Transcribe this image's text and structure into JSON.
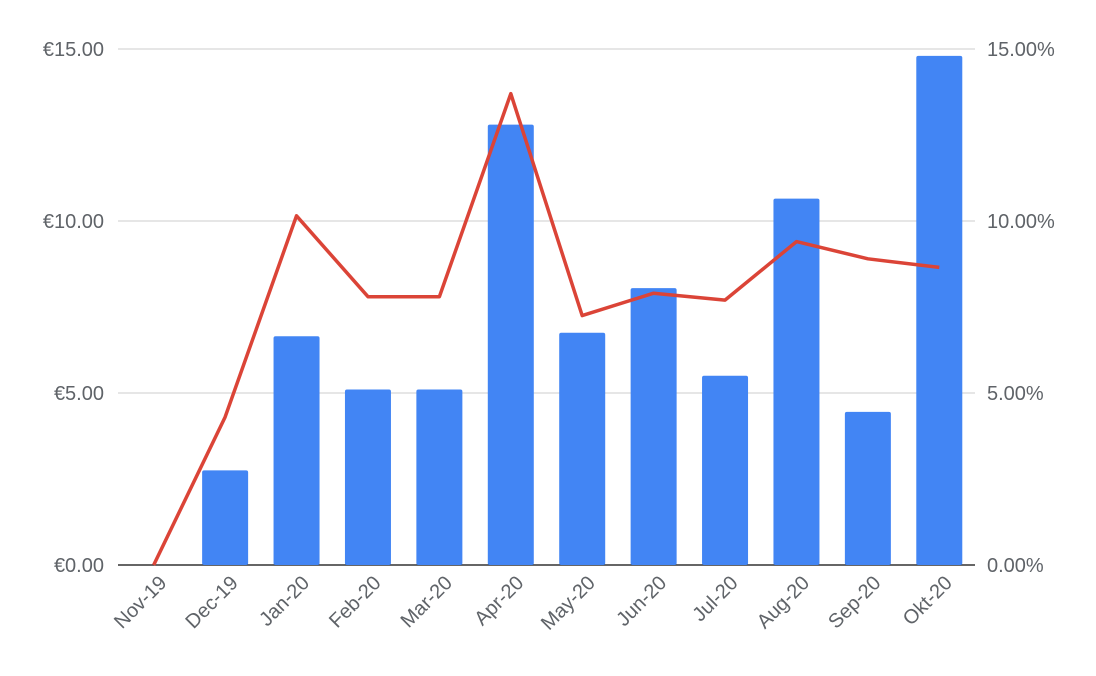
{
  "chart_data": {
    "type": "bar",
    "categories": [
      "Nov-19",
      "Dec-19",
      "Jan-20",
      "Feb-20",
      "Mar-20",
      "Apr-20",
      "May-20",
      "Jun-20",
      "Jul-20",
      "Aug-20",
      "Sep-20",
      "Okt-20"
    ],
    "series": [
      {
        "type": "bar",
        "axis": "left",
        "color": "#4285f4",
        "values": [
          0,
          2.75,
          6.65,
          5.1,
          5.1,
          12.8,
          6.75,
          8.05,
          5.5,
          10.65,
          4.45,
          14.8
        ]
      },
      {
        "type": "line",
        "axis": "right",
        "color": "#db4437",
        "values": [
          0,
          4.3,
          10.15,
          7.8,
          7.8,
          13.7,
          7.25,
          7.9,
          7.7,
          9.4,
          8.9,
          8.65
        ]
      }
    ],
    "y_left": {
      "ylim": [
        0,
        15
      ],
      "ticks": [
        0,
        5,
        10,
        15
      ],
      "tick_labels": [
        "€0.00",
        "€5.00",
        "€10.00",
        "€15.00"
      ]
    },
    "y_right": {
      "ylim": [
        0,
        15
      ],
      "ticks": [
        0,
        5,
        10,
        15
      ],
      "tick_labels": [
        "0.00%",
        "5.00%",
        "10.00%",
        "15.00%"
      ]
    },
    "grid": true,
    "legend": "none"
  }
}
